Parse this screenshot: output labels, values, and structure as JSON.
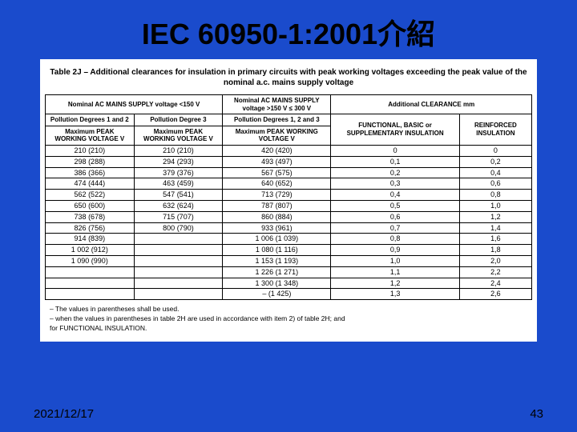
{
  "title": "IEC 60950-1:2001介紹",
  "table": {
    "caption": "Table 2J – Additional clearances for insulation in primary circuits with peak working voltages exceeding the peak value of the nominal a.c. mains supply voltage",
    "head_row1_col1": "Nominal AC MAINS SUPPLY voltage\n<150 V",
    "head_row1_col2": "Nominal AC MAINS SUPPLY voltage\n>150 V ≤ 300 V",
    "head_row1_col3": "Additional CLEARANCE\nmm",
    "head_row2_col1": "Pollution Degrees\n1 and 2",
    "head_row2_col2": "Pollution Degree\n3",
    "head_row2_col3": "Pollution Degrees\n1, 2 and 3",
    "head_row3_label": "Maximum PEAK WORKING VOLTAGE\nV",
    "head_row3_col4": "FUNCTIONAL, BASIC or SUPPLEMENTARY INSULATION",
    "head_row3_col5": "REINFORCED INSULATION",
    "rows": [
      [
        "210  (210)",
        "210  (210)",
        "420  (420)",
        "0",
        "0"
      ],
      [
        "298  (288)",
        "294  (293)",
        "493  (497)",
        "0,1",
        "0,2"
      ],
      [
        "386  (366)",
        "379  (376)",
        "567  (575)",
        "0,2",
        "0,4"
      ],
      [
        "474  (444)",
        "463  (459)",
        "640  (652)",
        "0,3",
        "0,6"
      ],
      [
        "562  (522)",
        "547  (541)",
        "713  (729)",
        "0,4",
        "0,8"
      ],
      [
        "650  (600)",
        "632  (624)",
        "787  (807)",
        "0,5",
        "1,0"
      ],
      [
        "738  (678)",
        "715  (707)",
        "860  (884)",
        "0,6",
        "1,2"
      ],
      [
        "826  (756)",
        "800  (790)",
        "933  (961)",
        "0,7",
        "1,4"
      ],
      [
        "914  (839)",
        "",
        "1 006  (1 039)",
        "0,8",
        "1,6"
      ],
      [
        "1 002  (912)",
        "",
        "1 080  (1 116)",
        "0,9",
        "1,8"
      ],
      [
        "1 090  (990)",
        "",
        "1 153  (1 193)",
        "1,0",
        "2,0"
      ],
      [
        "",
        "",
        "1 226  (1 271)",
        "1,1",
        "2,2"
      ],
      [
        "",
        "",
        "1 300  (1 348)",
        "1,2",
        "2,4"
      ],
      [
        "",
        "",
        "–  (1 425)",
        "1,3",
        "2,6"
      ]
    ],
    "notes": [
      "–   The values in parentheses shall be used.",
      "–   when the values in parentheses in table 2H are used in accordance with item 2) of table 2H; and",
      "      for FUNCTIONAL INSULATION."
    ]
  },
  "footer": {
    "date": "2021/12/17",
    "page": "43"
  },
  "colors": {
    "background": "#1a4bcc",
    "panel": "#ffffff",
    "text": "#000000"
  }
}
